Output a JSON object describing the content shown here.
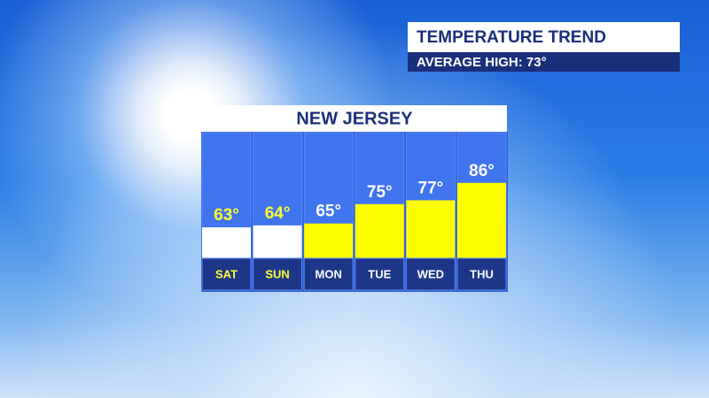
{
  "header": {
    "title": "TEMPERATURE TREND",
    "subtitle": "AVERAGE HIGH:  73°"
  },
  "chart_data": {
    "type": "bar",
    "title": "NEW JERSEY",
    "categories": [
      "SAT",
      "SUN",
      "MON",
      "TUE",
      "WED",
      "THU"
    ],
    "values": [
      63,
      64,
      65,
      75,
      77,
      86
    ],
    "value_labels": [
      "63°",
      "64°",
      "65°",
      "75°",
      "77°",
      "86°"
    ],
    "colors": [
      "#ffffff",
      "#ffffff",
      "#ffff00",
      "#ffff00",
      "#ffff00",
      "#ffff00"
    ],
    "label_colors": [
      "#ffff33",
      "#ffff33",
      "#ffffff",
      "#ffffff",
      "#ffffff",
      "#ffffff"
    ],
    "ylim": [
      47,
      112
    ]
  }
}
